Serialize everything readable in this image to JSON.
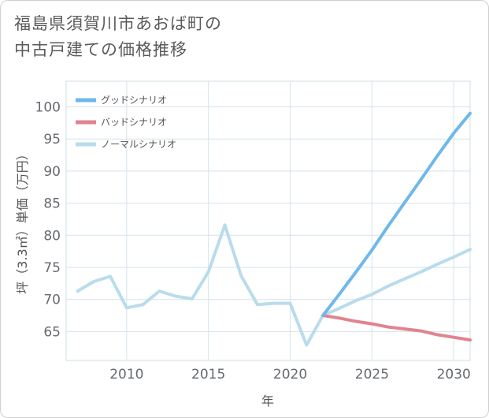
{
  "title": {
    "line1": "福島県須賀川市あおば町の",
    "line2": "中古戸建ての価格推移"
  },
  "chart_data": {
    "type": "line",
    "xlabel": "年",
    "ylabel": "坪（3.3㎡）単価（万円）",
    "xlim": [
      2006.3,
      2031
    ],
    "ylim": [
      60.5,
      104
    ],
    "xticks": [
      2010,
      2015,
      2020,
      2025,
      2030
    ],
    "yticks": [
      65,
      70,
      75,
      80,
      85,
      90,
      95,
      100
    ],
    "grid": true,
    "legend_position": "top-left",
    "series": [
      {
        "name": "グッドシナリオ",
        "color": "#6fb8ea",
        "x": [
          2022,
          2023,
          2024,
          2025,
          2026,
          2027,
          2028,
          2029,
          2030,
          2031
        ],
        "values": [
          67.5,
          70.8,
          74.2,
          77.7,
          81.5,
          85.1,
          88.7,
          92.4,
          95.9,
          99.0
        ]
      },
      {
        "name": "バッドシナリオ",
        "color": "#e0848f",
        "x": [
          2022,
          2023,
          2024,
          2025,
          2026,
          2027,
          2028,
          2029,
          2030,
          2031
        ],
        "values": [
          67.5,
          67.1,
          66.6,
          66.2,
          65.7,
          65.4,
          65.1,
          64.5,
          64.1,
          63.7
        ]
      },
      {
        "name": "ノーマルシナリオ",
        "color": "#b9dcec",
        "x": [
          2007,
          2008,
          2009,
          2010,
          2011,
          2012,
          2013,
          2014,
          2015,
          2016,
          2017,
          2018,
          2019,
          2020,
          2021,
          2022,
          2023,
          2024,
          2025,
          2026,
          2027,
          2028,
          2029,
          2030,
          2031
        ],
        "values": [
          71.3,
          72.8,
          73.6,
          68.7,
          69.2,
          71.3,
          70.5,
          70.1,
          74.3,
          81.6,
          73.7,
          69.2,
          69.4,
          69.4,
          62.9,
          67.5,
          68.6,
          69.8,
          70.8,
          72.1,
          73.2,
          74.3,
          75.5,
          76.6,
          77.8
        ]
      }
    ]
  }
}
